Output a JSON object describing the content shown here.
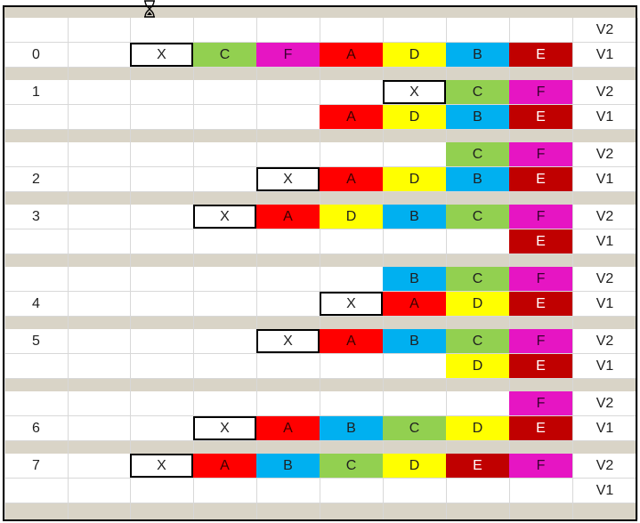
{
  "colors": {
    "A": "#ff0000",
    "B": "#00b0f0",
    "C": "#92d050",
    "D": "#ffff00",
    "E": "#c00000",
    "F": "#e615c3",
    "X": "#ffffff"
  },
  "icons": {
    "cursor": "hourglass-cursor-icon"
  },
  "rows": [
    {
      "index": "",
      "version": "V2",
      "cells": [
        "",
        "",
        "",
        "",
        "",
        "",
        "",
        ""
      ]
    },
    {
      "index": "0",
      "version": "V1",
      "cells": [
        "",
        "X",
        "C",
        "F",
        "A",
        "D",
        "B",
        "E"
      ]
    },
    {
      "index": "1",
      "version": "V2",
      "cells": [
        "",
        "",
        "",
        "",
        "",
        "X",
        "C",
        "F"
      ]
    },
    {
      "index": "",
      "version": "V1",
      "cells": [
        "",
        "",
        "",
        "",
        "A",
        "D",
        "B",
        "E"
      ]
    },
    {
      "index": "",
      "version": "V2",
      "cells": [
        "",
        "",
        "",
        "",
        "",
        "",
        "C",
        "F"
      ]
    },
    {
      "index": "2",
      "version": "V1",
      "cells": [
        "",
        "",
        "",
        "X",
        "A",
        "D",
        "B",
        "E"
      ]
    },
    {
      "index": "3",
      "version": "V2",
      "cells": [
        "",
        "",
        "X",
        "A",
        "D",
        "B",
        "C",
        "F"
      ]
    },
    {
      "index": "",
      "version": "V1",
      "cells": [
        "",
        "",
        "",
        "",
        "",
        "",
        "",
        "E"
      ]
    },
    {
      "index": "",
      "version": "V2",
      "cells": [
        "",
        "",
        "",
        "",
        "",
        "B",
        "C",
        "F"
      ]
    },
    {
      "index": "4",
      "version": "V1",
      "cells": [
        "",
        "",
        "",
        "",
        "X",
        "A",
        "D",
        "E"
      ]
    },
    {
      "index": "5",
      "version": "V2",
      "cells": [
        "",
        "",
        "",
        "X",
        "A",
        "B",
        "C",
        "F"
      ]
    },
    {
      "index": "",
      "version": "V1",
      "cells": [
        "",
        "",
        "",
        "",
        "",
        "",
        "D",
        "E"
      ]
    },
    {
      "index": "",
      "version": "V2",
      "cells": [
        "",
        "",
        "",
        "",
        "",
        "",
        "",
        "F"
      ]
    },
    {
      "index": "6",
      "version": "V1",
      "cells": [
        "",
        "",
        "X",
        "A",
        "B",
        "C",
        "D",
        "E"
      ]
    },
    {
      "index": "7",
      "version": "V2",
      "cells": [
        "",
        "X",
        "A",
        "B",
        "C",
        "D",
        "E",
        "F"
      ]
    },
    {
      "index": "",
      "version": "V1",
      "cells": [
        "",
        "",
        "",
        "",
        "",
        "",
        "",
        ""
      ]
    }
  ]
}
